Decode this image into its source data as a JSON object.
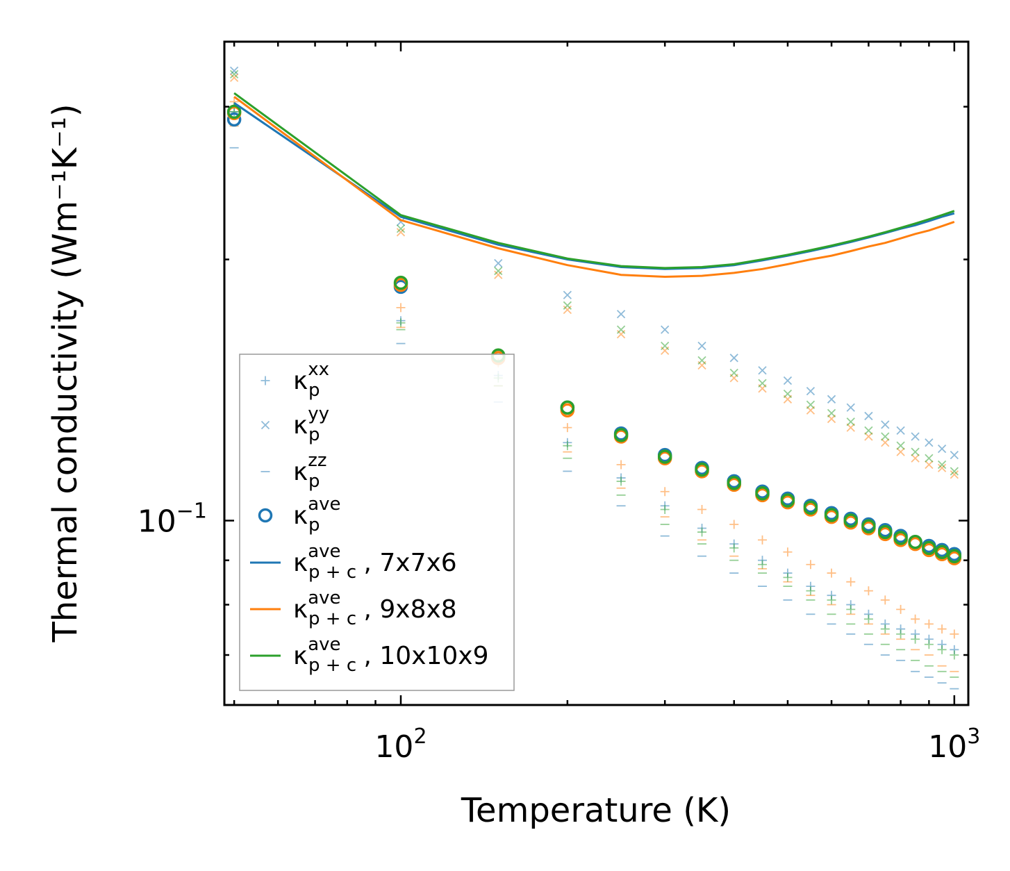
{
  "chart_data": {
    "type": "scatter",
    "title": "",
    "xlabel": "Temperature (K)",
    "ylabel": "Thermal conductivity (Wm⁻¹K⁻¹)",
    "xscale": "log",
    "yscale": "log",
    "xlim": [
      48,
      1060
    ],
    "ylim": [
      0.0613,
      0.3565
    ],
    "x_ticks": [
      {
        "value": 100,
        "base": "10",
        "exp": "2"
      },
      {
        "value": 1000,
        "base": "10",
        "exp": "3"
      }
    ],
    "y_ticks": [
      {
        "value": 0.1,
        "base": "10",
        "exp": "−1"
      }
    ],
    "legend_position": "lower-left",
    "x": [
      50,
      100,
      150,
      200,
      250,
      300,
      350,
      400,
      450,
      500,
      550,
      600,
      650,
      700,
      750,
      800,
      850,
      900,
      950,
      1000
    ],
    "series": [
      {
        "key": "xx_a",
        "name": "κ_p^xx",
        "marker": "plus",
        "color": "#1f77b4",
        "opacity": 0.5,
        "values": [
          0.296,
          0.17,
          0.147,
          0.123,
          0.112,
          0.104,
          0.098,
          0.094,
          0.09,
          0.087,
          0.084,
          0.082,
          0.08,
          0.078,
          0.076,
          0.075,
          0.074,
          0.073,
          0.072,
          0.071
        ]
      },
      {
        "key": "xx_b",
        "name": "κ_p^xx",
        "marker": "plus",
        "color": "#ff7f0e",
        "opacity": 0.5,
        "values": [
          0.304,
          0.176,
          0.152,
          0.128,
          0.116,
          0.108,
          0.103,
          0.099,
          0.095,
          0.092,
          0.089,
          0.087,
          0.085,
          0.083,
          0.081,
          0.079,
          0.077,
          0.076,
          0.075,
          0.074
        ]
      },
      {
        "key": "xx_c",
        "name": "κ_p^xx",
        "marker": "plus",
        "color": "#2ca02c",
        "opacity": 0.5,
        "values": [
          0.3,
          0.169,
          0.146,
          0.122,
          0.111,
          0.103,
          0.097,
          0.093,
          0.089,
          0.086,
          0.083,
          0.081,
          0.079,
          0.077,
          0.075,
          0.074,
          0.073,
          0.072,
          0.071,
          0.07
        ]
      },
      {
        "key": "yy_a",
        "name": "κ_p^yy",
        "marker": "x",
        "color": "#1f77b4",
        "opacity": 0.5,
        "values": [
          0.33,
          0.221,
          0.198,
          0.182,
          0.173,
          0.166,
          0.159,
          0.154,
          0.149,
          0.145,
          0.141,
          0.138,
          0.135,
          0.132,
          0.129,
          0.127,
          0.125,
          0.123,
          0.121,
          0.119
        ]
      },
      {
        "key": "yy_b",
        "name": "κ_p^yy",
        "marker": "x",
        "color": "#ff7f0e",
        "opacity": 0.5,
        "values": [
          0.324,
          0.215,
          0.192,
          0.175,
          0.164,
          0.157,
          0.151,
          0.146,
          0.142,
          0.138,
          0.134,
          0.131,
          0.128,
          0.125,
          0.123,
          0.12,
          0.118,
          0.116,
          0.115,
          0.113
        ]
      },
      {
        "key": "yy_c",
        "name": "κ_p^yy",
        "marker": "x",
        "color": "#2ca02c",
        "opacity": 0.5,
        "values": [
          0.327,
          0.217,
          0.194,
          0.177,
          0.166,
          0.159,
          0.153,
          0.148,
          0.144,
          0.14,
          0.136,
          0.133,
          0.13,
          0.127,
          0.125,
          0.122,
          0.12,
          0.118,
          0.116,
          0.114
        ]
      },
      {
        "key": "zz_a",
        "name": "κ_p^zz",
        "marker": "dash",
        "color": "#1f77b4",
        "opacity": 0.5,
        "values": [
          0.269,
          0.16,
          0.137,
          0.114,
          0.104,
          0.096,
          0.091,
          0.087,
          0.084,
          0.081,
          0.078,
          0.076,
          0.074,
          0.072,
          0.07,
          0.069,
          0.067,
          0.066,
          0.065,
          0.064
        ]
      },
      {
        "key": "zz_b",
        "name": "κ_p^zz",
        "marker": "dash",
        "color": "#ff7f0e",
        "opacity": 0.5,
        "values": [
          0.285,
          0.167,
          0.143,
          0.12,
          0.109,
          0.101,
          0.095,
          0.091,
          0.088,
          0.085,
          0.082,
          0.08,
          0.078,
          0.076,
          0.074,
          0.073,
          0.071,
          0.07,
          0.068,
          0.067
        ]
      },
      {
        "key": "zz_c",
        "name": "κ_p^zz",
        "marker": "dash",
        "color": "#2ca02c",
        "opacity": 0.5,
        "values": [
          0.296,
          0.166,
          0.143,
          0.118,
          0.107,
          0.099,
          0.094,
          0.09,
          0.087,
          0.084,
          0.081,
          0.078,
          0.076,
          0.074,
          0.072,
          0.071,
          0.069,
          0.068,
          0.067,
          0.066
        ]
      },
      {
        "key": "ave_a",
        "name": "κ_p^ave",
        "marker": "circle",
        "color": "#1f77b4",
        "opacity": 1,
        "values": [
          0.29,
          0.186,
          0.154,
          0.135,
          0.126,
          0.119,
          0.115,
          0.111,
          0.108,
          0.106,
          0.104,
          0.102,
          0.1005,
          0.099,
          0.0975,
          0.096,
          0.0945,
          0.0935,
          0.0925,
          0.0915
        ]
      },
      {
        "key": "ave_b",
        "name": "κ_p^ave",
        "marker": "circle",
        "color": "#ff7f0e",
        "opacity": 1,
        "values": [
          0.295,
          0.187,
          0.154,
          0.134,
          0.125,
          0.118,
          0.114,
          0.11,
          0.107,
          0.105,
          0.103,
          0.101,
          0.0995,
          0.098,
          0.0965,
          0.095,
          0.094,
          0.0925,
          0.0915,
          0.0905
        ]
      },
      {
        "key": "ave_c",
        "name": "κ_p^ave",
        "marker": "circle",
        "color": "#2ca02c",
        "opacity": 1,
        "values": [
          0.296,
          0.188,
          0.155,
          0.135,
          0.1255,
          0.1185,
          0.1145,
          0.1105,
          0.1075,
          0.1055,
          0.1035,
          0.1015,
          0.1,
          0.0985,
          0.097,
          0.0955,
          0.0945,
          0.093,
          0.092,
          0.091
        ]
      },
      {
        "key": "pc_a",
        "name": "κ_p+c^ave, 7x7x6",
        "marker": "line",
        "color": "#1f77b4",
        "opacity": 1,
        "values": [
          0.303,
          0.224,
          0.208,
          0.2,
          0.196,
          0.195,
          0.1955,
          0.197,
          0.1995,
          0.202,
          0.2045,
          0.207,
          0.2095,
          0.212,
          0.2145,
          0.217,
          0.219,
          0.2215,
          0.224,
          0.226
        ]
      },
      {
        "key": "pc_b",
        "name": "κ_p+c^ave, 9x8x8",
        "marker": "line",
        "color": "#ff7f0e",
        "opacity": 1,
        "values": [
          0.308,
          0.222,
          0.206,
          0.197,
          0.192,
          0.191,
          0.1915,
          0.193,
          0.195,
          0.1975,
          0.2,
          0.202,
          0.2045,
          0.207,
          0.209,
          0.2115,
          0.214,
          0.216,
          0.2185,
          0.221
        ]
      },
      {
        "key": "pc_c",
        "name": "κ_p+c^ave, 10x10x9",
        "marker": "line",
        "color": "#2ca02c",
        "opacity": 1,
        "values": [
          0.311,
          0.225,
          0.209,
          0.2005,
          0.1965,
          0.1955,
          0.196,
          0.1975,
          0.2,
          0.2025,
          0.205,
          0.2075,
          0.21,
          0.2125,
          0.215,
          0.2175,
          0.22,
          0.2225,
          0.225,
          0.2275
        ]
      }
    ],
    "legend": [
      {
        "marker": "plus",
        "color": "#1f77b4",
        "opacity": 0.5,
        "base": "κ",
        "sub": "p",
        "sup": "xx",
        "suffix": ""
      },
      {
        "marker": "x",
        "color": "#1f77b4",
        "opacity": 0.5,
        "base": "κ",
        "sub": "p",
        "sup": "yy",
        "suffix": ""
      },
      {
        "marker": "dash",
        "color": "#1f77b4",
        "opacity": 0.5,
        "base": "κ",
        "sub": "p",
        "sup": "zz",
        "suffix": ""
      },
      {
        "marker": "circle",
        "color": "#1f77b4",
        "opacity": 1,
        "base": "κ",
        "sub": "p",
        "sup": "ave",
        "suffix": ""
      },
      {
        "marker": "line",
        "color": "#1f77b4",
        "opacity": 1,
        "base": "κ",
        "sub": "p + c",
        "sup": "ave",
        "suffix": ", 7x7x6"
      },
      {
        "marker": "line",
        "color": "#ff7f0e",
        "opacity": 1,
        "base": "κ",
        "sub": "p + c",
        "sup": "ave",
        "suffix": ", 9x8x8"
      },
      {
        "marker": "line",
        "color": "#2ca02c",
        "opacity": 1,
        "base": "κ",
        "sub": "p + c",
        "sup": "ave",
        "suffix": ", 10x10x9"
      }
    ]
  }
}
